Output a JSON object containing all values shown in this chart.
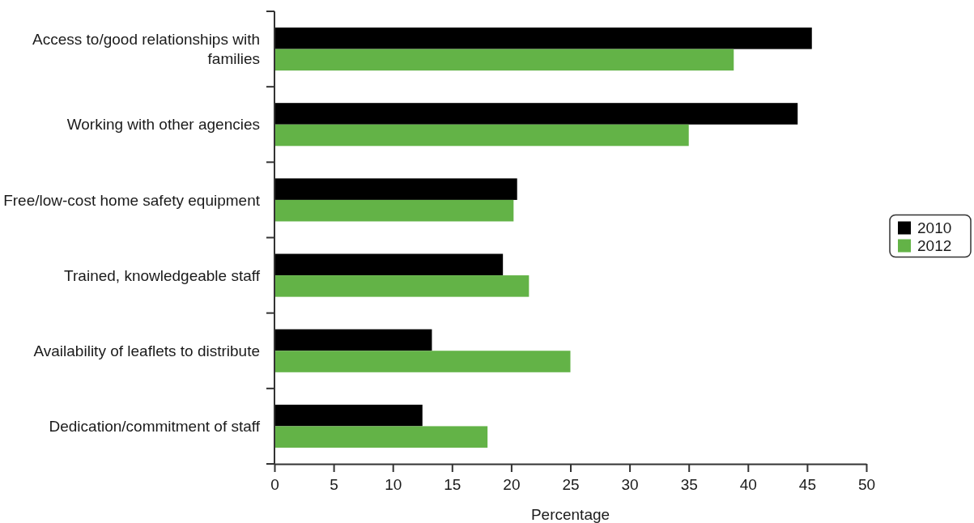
{
  "chart_data": {
    "type": "bar",
    "orientation": "horizontal",
    "xlabel": "Percentage",
    "categories": [
      "Access to/good relationships with families",
      "Working with other agencies",
      "Free/low-cost home safety equipment",
      "Trained, knowledgeable staff",
      "Availability of leaflets to distribute",
      "Dedication/commitment of staff"
    ],
    "series": [
      {
        "name": "2010",
        "color": "#000000",
        "values": [
          45.4,
          44.2,
          20.5,
          19.3,
          13.3,
          12.5
        ]
      },
      {
        "name": "2012",
        "color": "#63b347",
        "values": [
          38.8,
          35.0,
          20.2,
          21.5,
          25.0,
          18.0
        ]
      }
    ],
    "xlim": [
      0,
      50
    ],
    "xticks": [
      0,
      5,
      10,
      15,
      20,
      25,
      30,
      35,
      40,
      45,
      50
    ],
    "grid": false,
    "legend": "right"
  }
}
